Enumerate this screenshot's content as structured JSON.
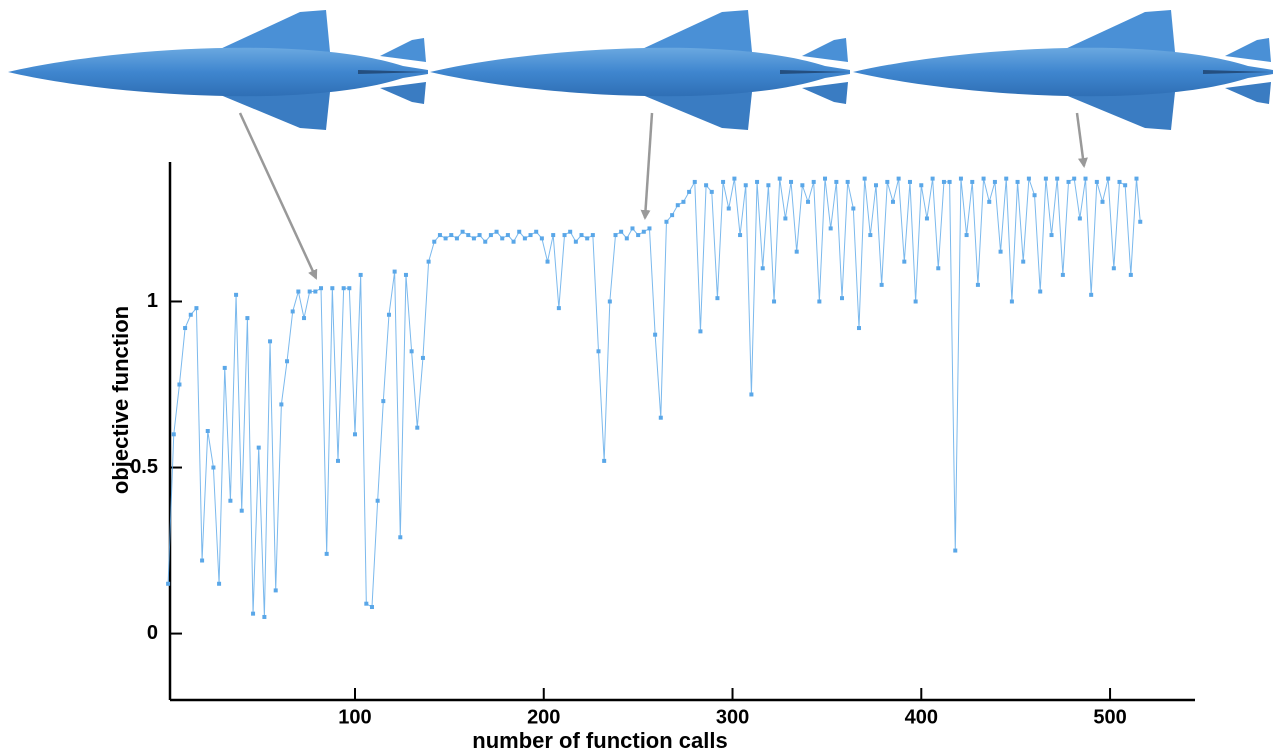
{
  "chart_data": {
    "type": "line",
    "xlabel": "number of function calls",
    "ylabel": "objective function",
    "color": "#5aa7e8",
    "xlim": [
      2,
      545
    ],
    "ylim": [
      -0.2,
      1.42
    ],
    "xticks": [
      100,
      200,
      300,
      400,
      500
    ],
    "yticks": [
      0,
      0.5,
      1
    ],
    "x": [
      1,
      4,
      7,
      10,
      13,
      16,
      19,
      22,
      25,
      28,
      31,
      34,
      37,
      40,
      43,
      46,
      49,
      52,
      55,
      58,
      61,
      64,
      67,
      70,
      73,
      76,
      79,
      82,
      85,
      88,
      91,
      94,
      97,
      100,
      103,
      106,
      109,
      112,
      115,
      118,
      121,
      124,
      127,
      130,
      133,
      136,
      139,
      142,
      145,
      148,
      151,
      154,
      157,
      160,
      163,
      166,
      169,
      172,
      175,
      178,
      181,
      184,
      187,
      190,
      193,
      196,
      199,
      202,
      205,
      208,
      211,
      214,
      217,
      220,
      223,
      226,
      229,
      232,
      235,
      238,
      241,
      244,
      247,
      250,
      253,
      256,
      259,
      262,
      265,
      268,
      271,
      274,
      277,
      280,
      283,
      286,
      289,
      292,
      295,
      298,
      301,
      304,
      307,
      310,
      313,
      316,
      319,
      322,
      325,
      328,
      331,
      334,
      337,
      340,
      343,
      346,
      349,
      352,
      355,
      358,
      361,
      364,
      367,
      370,
      373,
      376,
      379,
      382,
      385,
      388,
      391,
      394,
      397,
      400,
      403,
      406,
      409,
      412,
      415,
      418,
      421,
      424,
      427,
      430,
      433,
      436,
      439,
      442,
      445,
      448,
      451,
      454,
      457,
      460,
      463,
      466,
      469,
      472,
      475,
      478,
      481,
      484,
      487,
      490,
      493,
      496,
      499,
      502,
      505,
      508,
      511,
      514,
      516
    ],
    "values": [
      0.15,
      0.6,
      0.75,
      0.92,
      0.96,
      0.98,
      0.22,
      0.61,
      0.5,
      0.15,
      0.8,
      0.4,
      1.02,
      0.37,
      0.95,
      0.06,
      0.56,
      0.05,
      0.88,
      0.13,
      0.69,
      0.82,
      0.97,
      1.03,
      0.95,
      1.03,
      1.03,
      1.04,
      0.24,
      1.04,
      0.52,
      1.04,
      1.04,
      0.6,
      1.08,
      0.09,
      0.08,
      0.4,
      0.7,
      0.96,
      1.09,
      0.29,
      1.08,
      0.85,
      0.62,
      0.83,
      1.12,
      1.18,
      1.2,
      1.19,
      1.2,
      1.19,
      1.21,
      1.2,
      1.19,
      1.2,
      1.18,
      1.2,
      1.21,
      1.19,
      1.2,
      1.18,
      1.21,
      1.19,
      1.2,
      1.21,
      1.19,
      1.12,
      1.2,
      0.98,
      1.2,
      1.21,
      1.18,
      1.2,
      1.19,
      1.2,
      0.85,
      0.52,
      1.0,
      1.2,
      1.21,
      1.19,
      1.22,
      1.2,
      1.21,
      1.22,
      0.9,
      0.65,
      1.24,
      1.26,
      1.29,
      1.3,
      1.33,
      1.36,
      0.91,
      1.35,
      1.33,
      1.01,
      1.36,
      1.28,
      1.37,
      1.2,
      1.35,
      0.72,
      1.36,
      1.1,
      1.35,
      1.0,
      1.37,
      1.25,
      1.36,
      1.15,
      1.35,
      1.3,
      1.36,
      1.0,
      1.37,
      1.22,
      1.36,
      1.01,
      1.36,
      1.28,
      0.92,
      1.37,
      1.2,
      1.35,
      1.05,
      1.36,
      1.3,
      1.37,
      1.12,
      1.36,
      1.0,
      1.35,
      1.25,
      1.37,
      1.1,
      1.36,
      1.36,
      0.25,
      1.37,
      1.2,
      1.36,
      1.05,
      1.37,
      1.3,
      1.36,
      1.15,
      1.37,
      1.0,
      1.36,
      1.12,
      1.37,
      1.32,
      1.03,
      1.37,
      1.2,
      1.37,
      1.08,
      1.36,
      1.37,
      1.25,
      1.37,
      1.02,
      1.36,
      1.3,
      1.37,
      1.1,
      1.36,
      1.35,
      1.08,
      1.37,
      1.24
    ]
  }
}
